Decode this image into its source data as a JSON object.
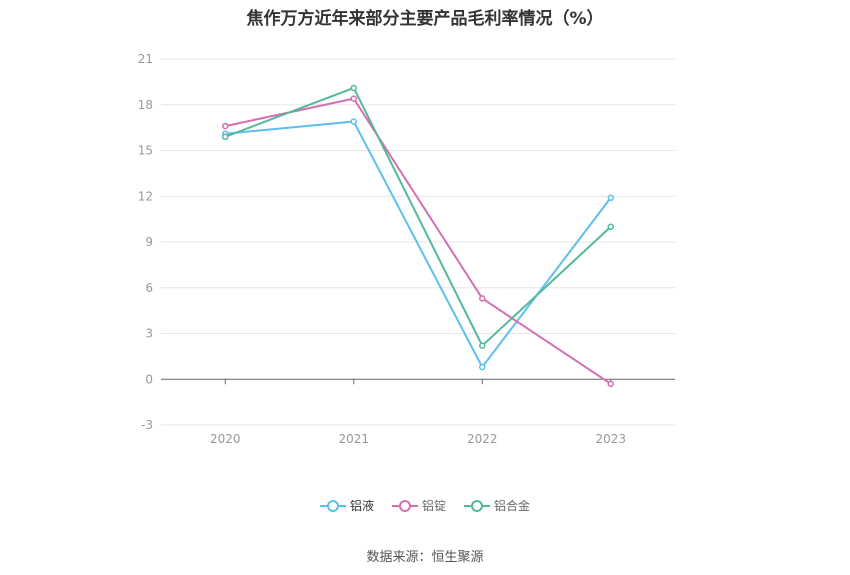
{
  "title": "焦作万方近年来部分主要产品毛利率情况（%）",
  "source": "数据来源：恒生聚源",
  "chart_data": {
    "type": "line",
    "title": "焦作万方近年来部分主要产品毛利率情况（%）",
    "categories": [
      "2020",
      "2021",
      "2022",
      "2023"
    ],
    "ylim": [
      -3,
      21
    ],
    "yticks": [
      -3,
      0,
      3,
      6,
      9,
      12,
      15,
      18,
      21
    ],
    "grid": true,
    "legend_position": "bottom",
    "series": [
      {
        "name": "铝液",
        "color": "#5bc0eb",
        "values": [
          16.1,
          16.9,
          0.8,
          11.9
        ]
      },
      {
        "name": "铝锭",
        "color": "#d56fb3",
        "values": [
          16.6,
          18.4,
          5.3,
          -0.3
        ]
      },
      {
        "name": "铝合金",
        "color": "#52b99a",
        "values": [
          15.9,
          19.1,
          2.2,
          10.0
        ]
      }
    ]
  }
}
